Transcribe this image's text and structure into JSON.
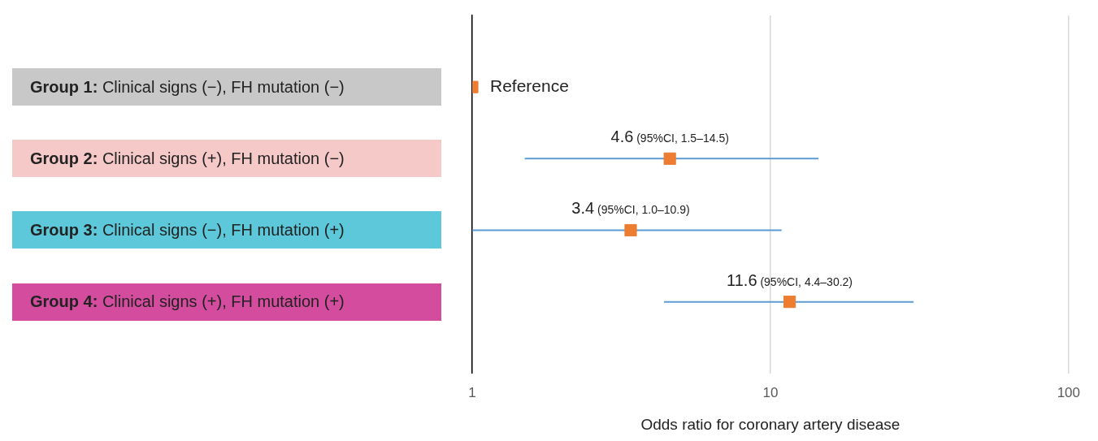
{
  "chart_data": {
    "type": "scatter",
    "orientation": "horizontal",
    "categories": [
      "Group 1: Clinical signs (−), FH mutation (−)",
      "Group 2: Clinical signs (+), FH mutation (−)",
      "Group 3: Clinical signs (−), FH mutation (+)",
      "Group 4: Clinical signs (+), FH mutation (+)"
    ],
    "series": [
      {
        "color": "#ed7d31",
        "values": [
          1,
          4.6,
          3.4,
          11.6
        ],
        "errors": [
          null,
          [
            1.5,
            14.5
          ],
          [
            1.0,
            10.9
          ],
          [
            4.4,
            30.2
          ]
        ],
        "value_labels": [
          "Reference",
          "4.6 (95%CI, 1.5–14.5)",
          "3.4 (95%CI, 1.0–10.9)",
          "11.6 (95%CI, 4.4–30.2)"
        ]
      }
    ],
    "xlim": [
      1,
      100
    ],
    "xticks": [
      1,
      10,
      100
    ],
    "log": "x",
    "grid": "x",
    "xlabel": "Odds ratio for coronary artery disease",
    "marker": "square",
    "legend": false
  }
}
